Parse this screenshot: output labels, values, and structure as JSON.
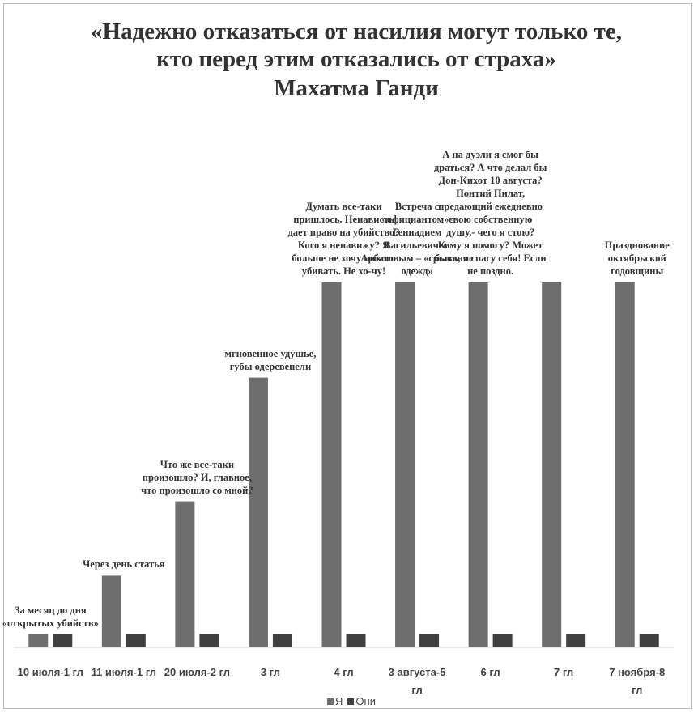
{
  "chart_data": {
    "type": "bar",
    "title": "«Надежно отказаться от насилия могут только те, кто перед этим отказались от страха»",
    "author": "Махатма Ганди",
    "categories": [
      "10 июля-1 гл",
      "11 июля-1 гл",
      "20 июля-2 гл",
      "3 гл",
      "4 гл",
      "3 августа-5 гл",
      "6 гл",
      "7 гл",
      "7 ноября-8 гл"
    ],
    "series": [
      {
        "name": "Я",
        "color": "#6e6e6e",
        "values": [
          1,
          5.5,
          11.2,
          20.7,
          28,
          28,
          28,
          28,
          28
        ]
      },
      {
        "name": "Они",
        "color": "#404040",
        "values": [
          1,
          1,
          1,
          1,
          1,
          1,
          1,
          1,
          1
        ]
      }
    ],
    "annotations": [
      "За месяц до дня «открытых убийств»",
      "Через день статья",
      "Что же все-таки произошло? И, главное, что произошло со мной?",
      "мгновенное удушье, губы одеревенели",
      "Думать все-таки пришлось. Ненависть дает право на убийство? Кого я ненавижу? Я больше не хочу никого убивать. Не хо-чу!",
      "Встреча с «официантом»- Геннадием Васильевичем Арбатовым – «срывание одежд»",
      "А на дуэли я смог бы драться? А что делал бы Дон-Кихот 10 августа? Понтий Пилат, предающий ежедневно свою собственную душу,- чего я стою? Кому я помогу? Может быть, я спасу себя! Если не поздно.",
      "",
      "Празднование октябрьской годовщины"
    ],
    "legend": "bottom"
  }
}
